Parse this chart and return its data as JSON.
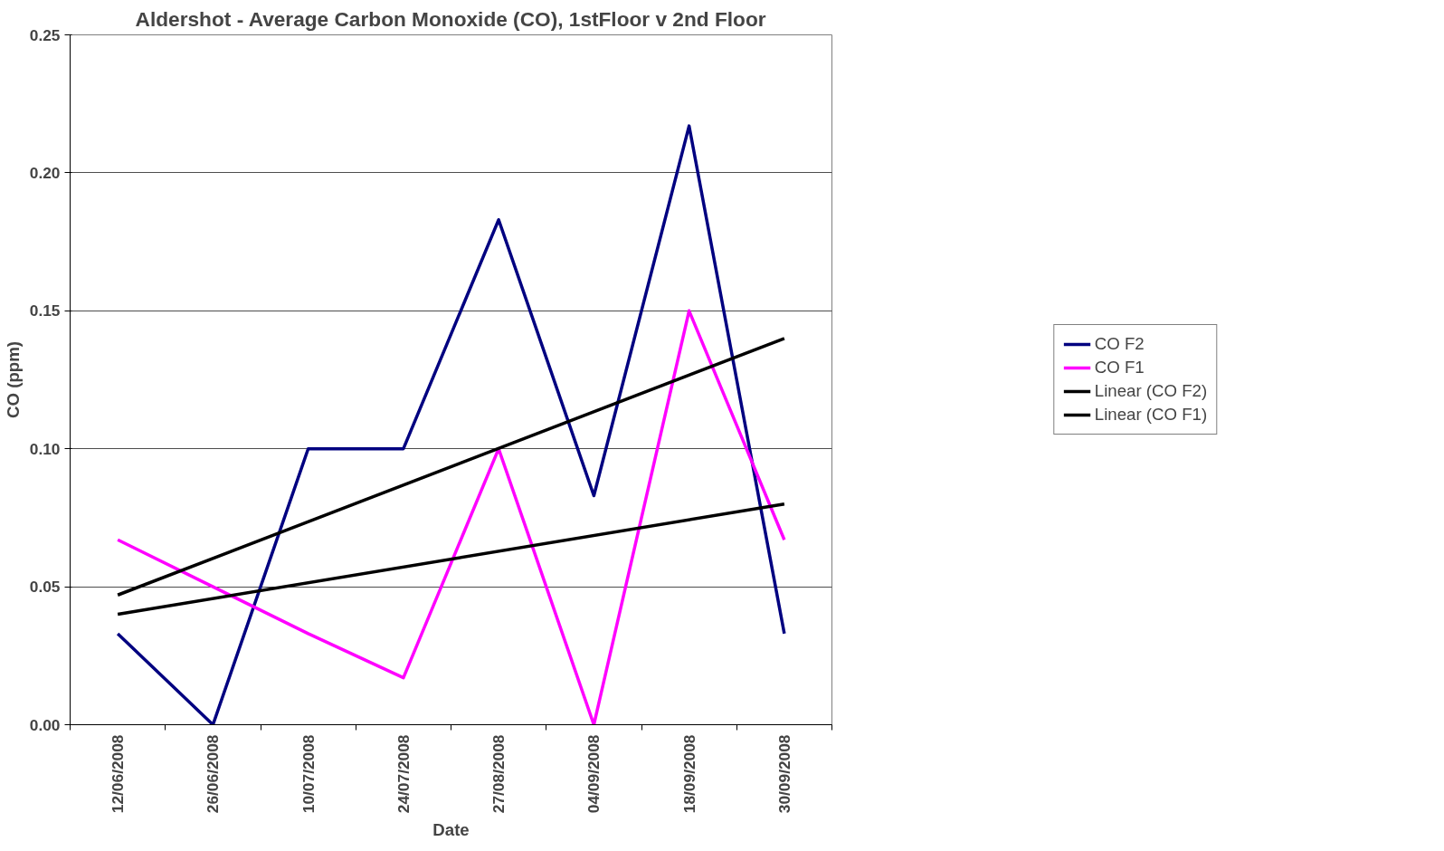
{
  "chart_data": {
    "type": "line",
    "title": "Aldershot - Average Carbon Monoxide (CO), 1stFloor v 2nd Floor",
    "xlabel": "Date",
    "ylabel": "CO (ppm)",
    "categories": [
      "12/06/2008",
      "26/06/2008",
      "10/07/2008",
      "24/07/2008",
      "27/08/2008",
      "04/09/2008",
      "18/09/2008",
      "30/09/2008"
    ],
    "series": [
      {
        "name": "CO F2",
        "color": "#000080",
        "values": [
          0.033,
          0,
          0.1,
          0.1,
          0.183,
          0.083,
          0.217,
          0.033
        ]
      },
      {
        "name": "CO F1",
        "color": "#ff00ff",
        "values": [
          0.067,
          0.05,
          0.033,
          0.017,
          0.1,
          0,
          0.15,
          0.067
        ]
      },
      {
        "name": "Linear (CO F2)",
        "color": "#000000",
        "type": "line",
        "x": [
          "12/06/2008",
          "30/09/2008"
        ],
        "values": [
          0.047,
          0.14
        ]
      },
      {
        "name": "Linear (CO F1)",
        "color": "#000000",
        "type": "line",
        "x": [
          "12/06/2008",
          "30/09/2008"
        ],
        "values": [
          0.04,
          0.08
        ]
      }
    ],
    "ylim": [
      0,
      0.25
    ],
    "yticks": [
      {
        "value": 0,
        "label": "0.00"
      },
      {
        "value": 0.05,
        "label": "0.05"
      },
      {
        "value": 0.1,
        "label": "0.10"
      },
      {
        "value": 0.15,
        "label": "0.15"
      },
      {
        "value": 0.2,
        "label": "0.20"
      },
      {
        "value": 0.25,
        "label": "0.25"
      }
    ],
    "grid": "y",
    "legend": "right",
    "marker": "none",
    "line_style": "solid"
  }
}
